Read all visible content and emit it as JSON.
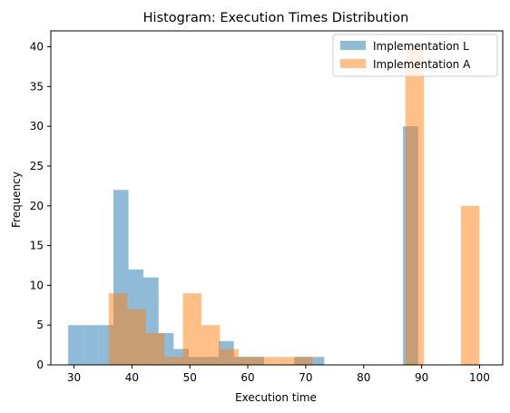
{
  "chart_data": {
    "type": "bar",
    "title": "Histogram: Execution Times Distribution",
    "xlabel": "Execution time",
    "ylabel": "Frequency",
    "xlim": [
      26,
      104
    ],
    "ylim": [
      0,
      42
    ],
    "xticks": [
      30,
      40,
      50,
      60,
      70,
      80,
      90,
      100
    ],
    "yticks": [
      0,
      5,
      10,
      15,
      20,
      25,
      30,
      35,
      40
    ],
    "grid": false,
    "legend_position": "top-right",
    "series": [
      {
        "name": "Implementation L",
        "color": "#1f77b4",
        "opacity": 0.5,
        "bins": [
          {
            "x0": 29.0,
            "x1": 31.6,
            "value": 5
          },
          {
            "x0": 31.6,
            "x1": 34.2,
            "value": 5
          },
          {
            "x0": 34.2,
            "x1": 36.8,
            "value": 5
          },
          {
            "x0": 36.8,
            "x1": 39.4,
            "value": 22
          },
          {
            "x0": 39.4,
            "x1": 42.0,
            "value": 12
          },
          {
            "x0": 42.0,
            "x1": 44.6,
            "value": 11
          },
          {
            "x0": 44.6,
            "x1": 47.2,
            "value": 4
          },
          {
            "x0": 47.2,
            "x1": 49.8,
            "value": 2
          },
          {
            "x0": 49.8,
            "x1": 52.4,
            "value": 1
          },
          {
            "x0": 52.4,
            "x1": 55.0,
            "value": 1
          },
          {
            "x0": 55.0,
            "x1": 57.6,
            "value": 3
          },
          {
            "x0": 57.6,
            "x1": 60.2,
            "value": 1
          },
          {
            "x0": 60.2,
            "x1": 62.8,
            "value": 1
          },
          {
            "x0": 62.8,
            "x1": 65.4,
            "value": 0
          },
          {
            "x0": 65.4,
            "x1": 68.0,
            "value": 0
          },
          {
            "x0": 68.0,
            "x1": 70.6,
            "value": 1
          },
          {
            "x0": 70.6,
            "x1": 73.2,
            "value": 1
          },
          {
            "x0": 86.8,
            "x1": 89.4,
            "value": 30
          }
        ]
      },
      {
        "name": "Implementation A",
        "color": "#ff7f0e",
        "opacity": 0.5,
        "bins": [
          {
            "x0": 36.0,
            "x1": 39.2,
            "value": 9
          },
          {
            "x0": 39.2,
            "x1": 42.4,
            "value": 7
          },
          {
            "x0": 42.4,
            "x1": 45.6,
            "value": 4
          },
          {
            "x0": 45.6,
            "x1": 48.8,
            "value": 1
          },
          {
            "x0": 48.8,
            "x1": 52.0,
            "value": 9
          },
          {
            "x0": 52.0,
            "x1": 55.2,
            "value": 5
          },
          {
            "x0": 55.2,
            "x1": 58.4,
            "value": 2
          },
          {
            "x0": 58.4,
            "x1": 61.6,
            "value": 1
          },
          {
            "x0": 61.6,
            "x1": 64.8,
            "value": 1
          },
          {
            "x0": 64.8,
            "x1": 68.0,
            "value": 1
          },
          {
            "x0": 68.0,
            "x1": 71.2,
            "value": 1
          },
          {
            "x0": 87.2,
            "x1": 90.4,
            "value": 40
          },
          {
            "x0": 96.8,
            "x1": 100.0,
            "value": 20
          }
        ]
      }
    ]
  }
}
